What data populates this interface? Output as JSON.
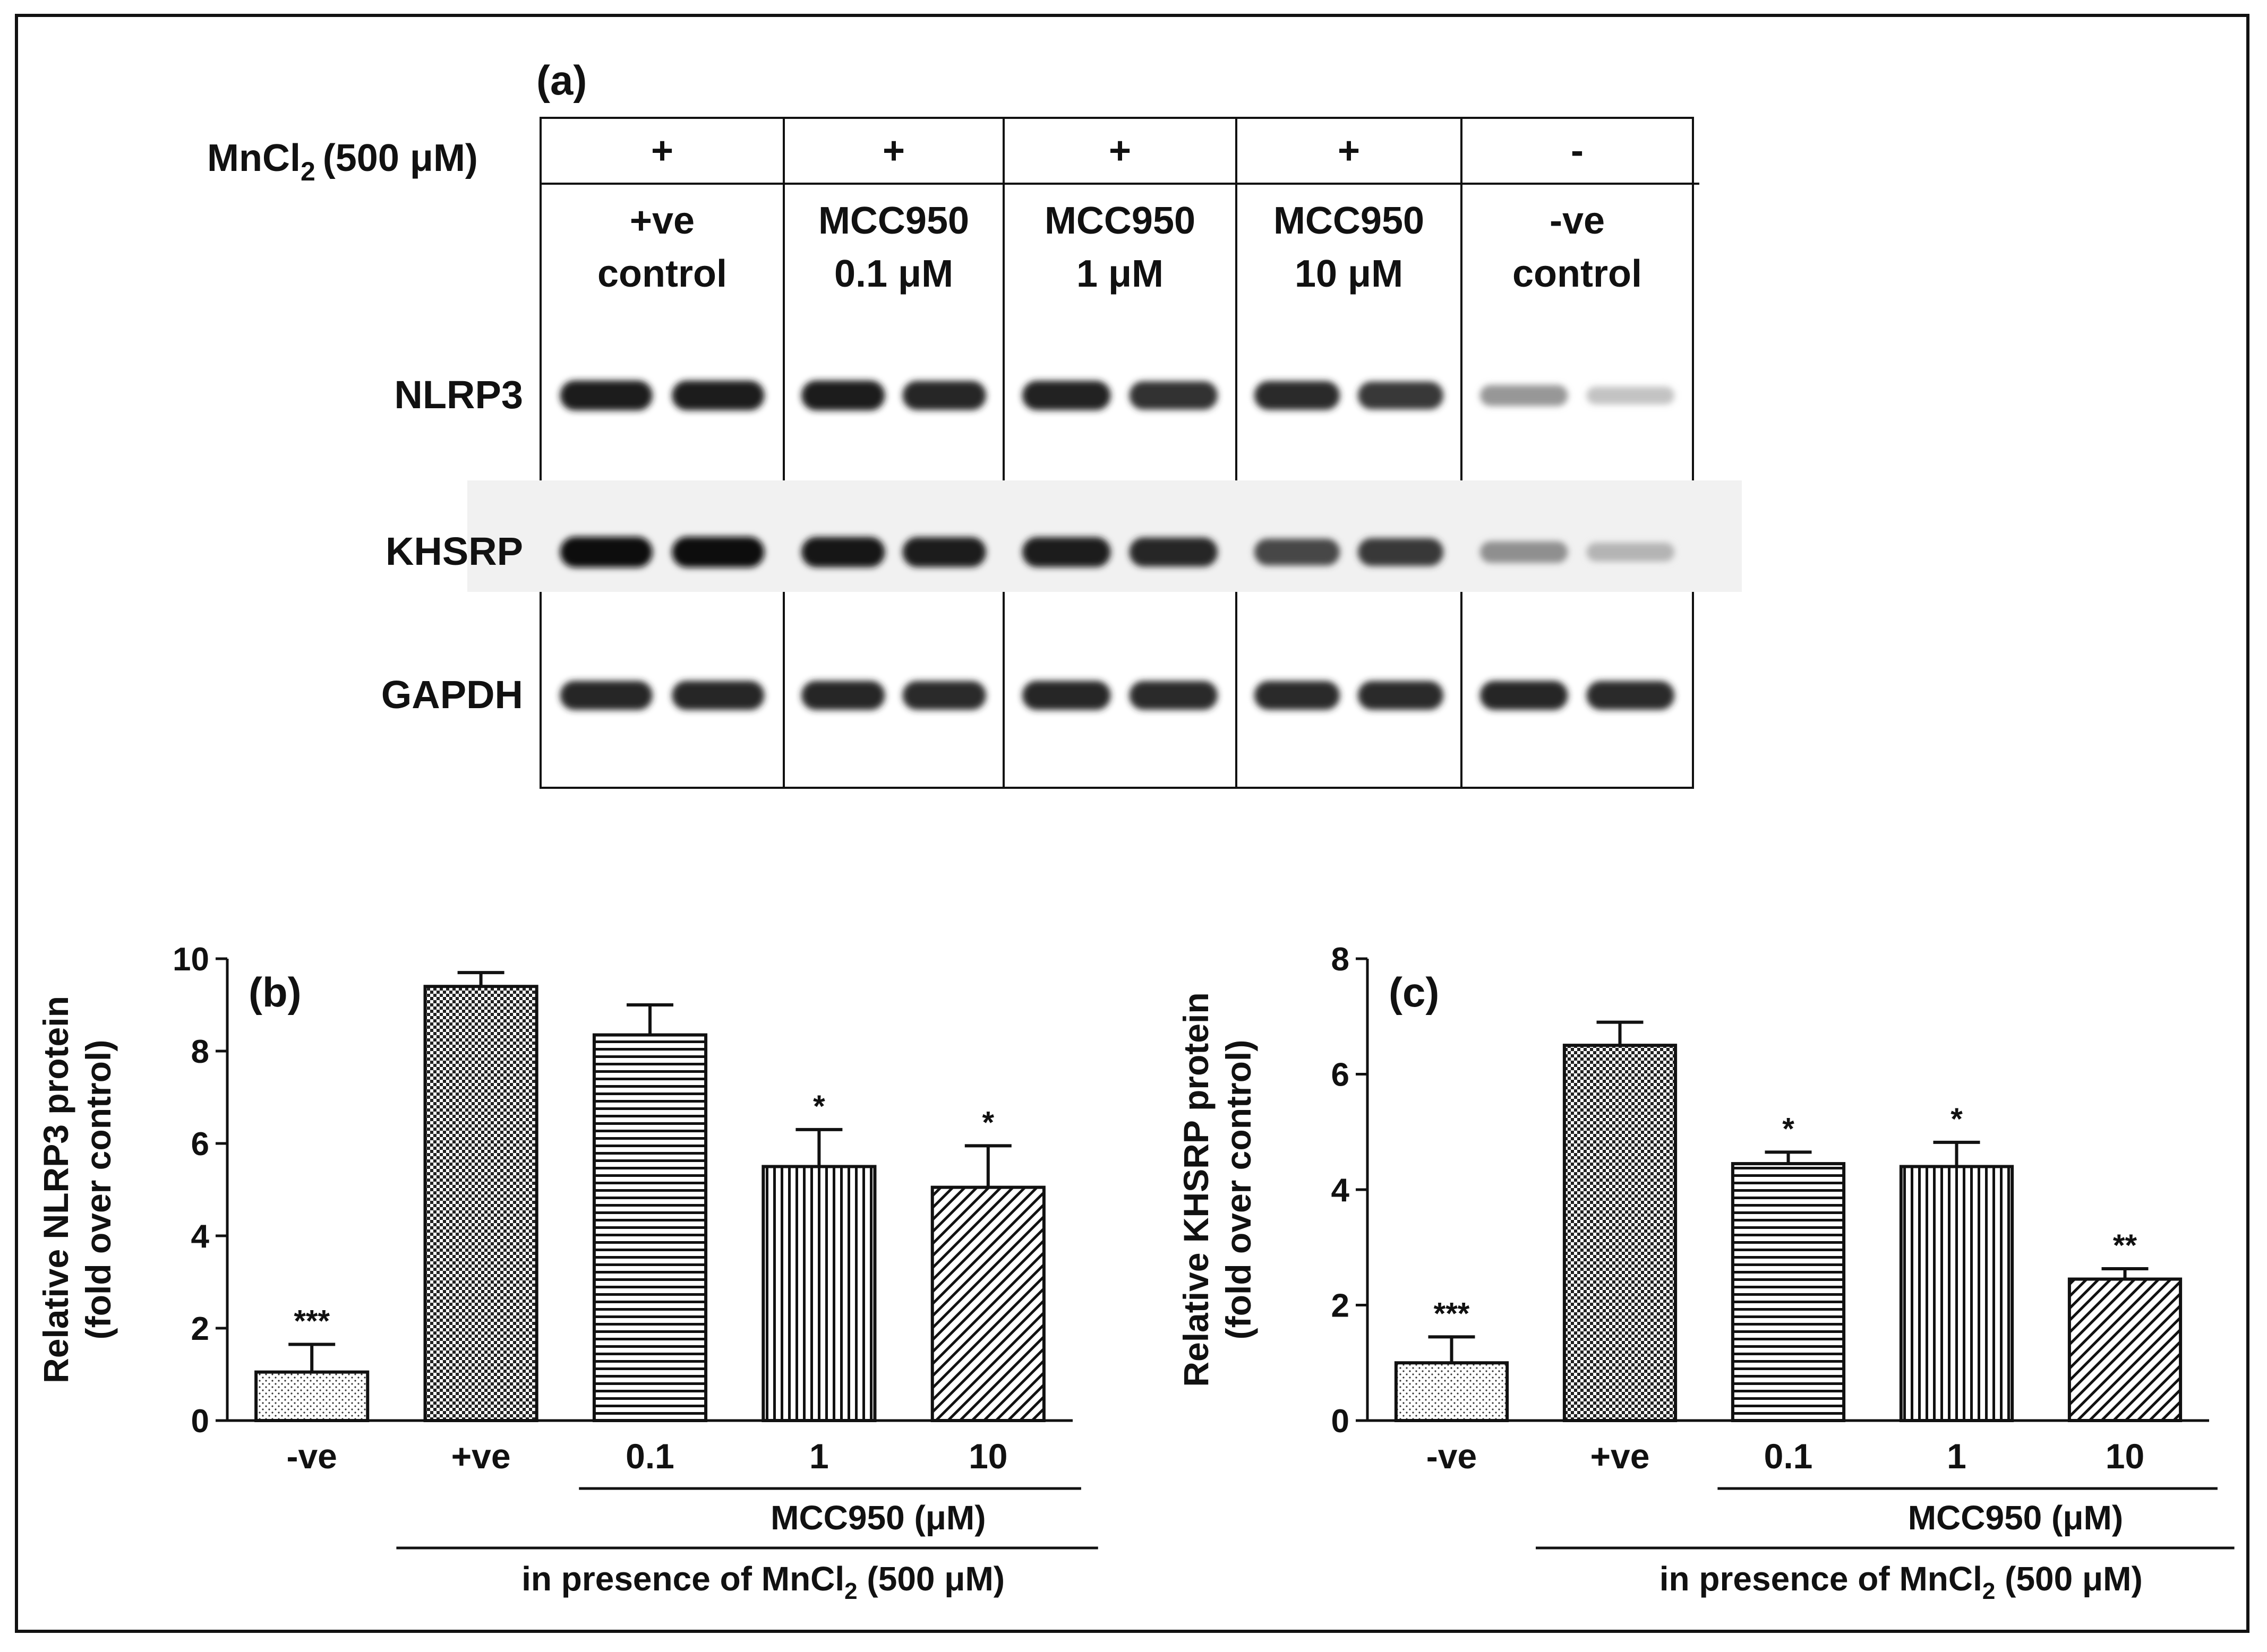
{
  "blot": {
    "panel_label": "(a)",
    "treatment_label": "MnCl",
    "treatment_sub": "2",
    "treatment_conc": "(500 μM)",
    "lanes": [
      {
        "mncl2": "+",
        "line1": "+ve",
        "line2": "control"
      },
      {
        "mncl2": "+",
        "line1": "MCC950",
        "line2": "0.1 μM"
      },
      {
        "mncl2": "+",
        "line1": "MCC950",
        "line2": "1 μM"
      },
      {
        "mncl2": "+",
        "line1": "MCC950",
        "line2": "10 μM"
      },
      {
        "mncl2": "-",
        "line1": "-ve",
        "line2": "control"
      }
    ],
    "proteins": [
      {
        "name": "NLRP3",
        "band_intensity": [
          0.95,
          0.93,
          0.95,
          0.9,
          0.92,
          0.85,
          0.88,
          0.82,
          0.38,
          0.18
        ]
      },
      {
        "name": "KHSRP",
        "band_intensity": [
          1.0,
          1.0,
          0.97,
          0.95,
          0.95,
          0.9,
          0.75,
          0.82,
          0.42,
          0.25
        ]
      },
      {
        "name": "GAPDH",
        "band_intensity": [
          0.9,
          0.9,
          0.9,
          0.88,
          0.9,
          0.88,
          0.88,
          0.88,
          0.9,
          0.88
        ]
      }
    ]
  },
  "chart_data": [
    {
      "type": "bar",
      "panel_label": "(b)",
      "ylabel_line1": "Relative NLRP3 protein",
      "ylabel_line2": "(fold over control)",
      "ylim": [
        0,
        10
      ],
      "yticks": [
        0,
        2,
        4,
        6,
        8,
        10
      ],
      "categories": [
        "-ve",
        "+ve",
        "0.1",
        "1",
        "10"
      ],
      "values": [
        1.05,
        9.4,
        8.35,
        5.5,
        5.05
      ],
      "errors": [
        0.6,
        0.3,
        0.65,
        0.8,
        0.9
      ],
      "significance": [
        "***",
        "",
        "",
        "*",
        "*"
      ],
      "xlabel": "MCC950 (μM)",
      "group_label_prefix": "in presence of MnCl",
      "group_label_sub": "2",
      "group_label_suffix": " (500 μM)"
    },
    {
      "type": "bar",
      "panel_label": "(c)",
      "ylabel_line1": "Relative KHSRP protein",
      "ylabel_line2": "(fold over control)",
      "ylim": [
        0,
        8
      ],
      "yticks": [
        0,
        2,
        4,
        6,
        8
      ],
      "categories": [
        "-ve",
        "+ve",
        "0.1",
        "1",
        "10"
      ],
      "values": [
        1.0,
        6.5,
        4.45,
        4.4,
        2.45
      ],
      "errors": [
        0.45,
        0.4,
        0.2,
        0.42,
        0.18
      ],
      "significance": [
        "***",
        "",
        "*",
        "*",
        "**"
      ],
      "xlabel": "MCC950 (μM)",
      "group_label_prefix": "in presence of MnCl",
      "group_label_sub": "2",
      "group_label_suffix": " (500 μM)"
    }
  ]
}
